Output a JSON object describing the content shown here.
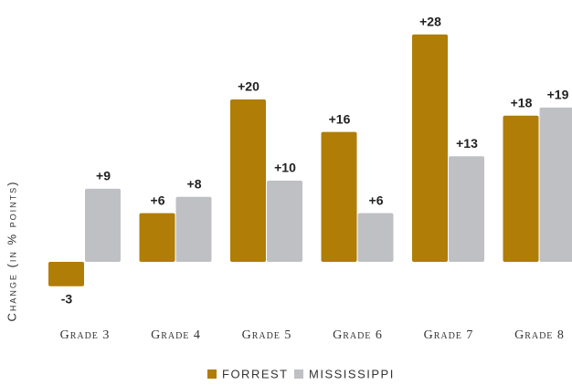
{
  "chart_data": {
    "type": "bar",
    "y_label": "Change (in % points)",
    "categories": [
      "Grade 3",
      "Grade 4",
      "Grade 5",
      "Grade 6",
      "Grade 7",
      "Grade 8"
    ],
    "series": [
      {
        "name": "FORREST",
        "color": "#b07d06",
        "values": [
          -3,
          6,
          20,
          16,
          28,
          18
        ],
        "value_labels": [
          "-3",
          "+6",
          "+20",
          "+16",
          "+28",
          "+18"
        ]
      },
      {
        "name": "MISSISSIPPI",
        "color": "#bfc0c3",
        "values": [
          9,
          8,
          10,
          6,
          13,
          19
        ],
        "value_labels": [
          "+9",
          "+8",
          "+10",
          "+6",
          "+13",
          "+19"
        ]
      }
    ],
    "legend": "bottom"
  }
}
